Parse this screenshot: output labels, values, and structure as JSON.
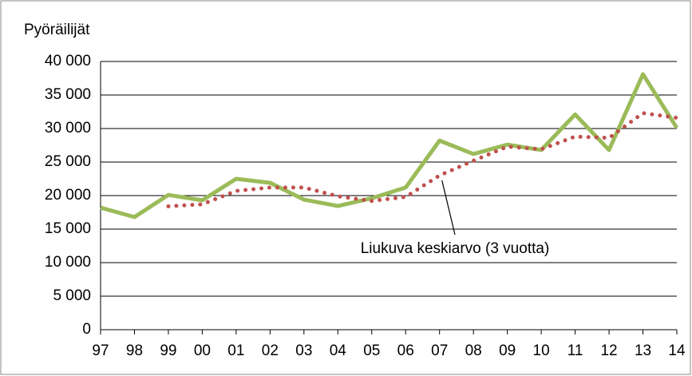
{
  "chart_data": {
    "type": "line",
    "ylabel": "Pyöräilijät",
    "categories": [
      "97",
      "98",
      "99",
      "00",
      "01",
      "02",
      "03",
      "04",
      "05",
      "06",
      "07",
      "08",
      "09",
      "10",
      "11",
      "12",
      "13",
      "14"
    ],
    "series": [
      {
        "color": "#9bbb59",
        "style": "solid",
        "values": [
          18200,
          16800,
          20100,
          19300,
          22500,
          21900,
          19400,
          18450,
          19600,
          21200,
          28200,
          26200,
          27600,
          26800,
          32100,
          26800,
          38100,
          30100
        ]
      },
      {
        "color": "#c0504d",
        "style": "dotted",
        "values": [
          null,
          null,
          18400,
          18700,
          20700,
          21200,
          21200,
          19900,
          19200,
          19800,
          23000,
          25200,
          27300,
          26900,
          28800,
          28600,
          32300,
          31600
        ]
      }
    ],
    "annotations": [
      {
        "text": "Liukuva keskiarvo (3 vuotta)",
        "series": 1,
        "index": 10
      }
    ],
    "ylim": [
      0,
      40000
    ],
    "yticks": [
      {
        "value": 0,
        "label": "0"
      },
      {
        "value": 5000,
        "label": "5 000"
      },
      {
        "value": 10000,
        "label": "10 000"
      },
      {
        "value": 15000,
        "label": "15 000"
      },
      {
        "value": 20000,
        "label": "20 000"
      },
      {
        "value": 25000,
        "label": "25 000"
      },
      {
        "value": 30000,
        "label": "30 000"
      },
      {
        "value": 35000,
        "label": "35 000"
      },
      {
        "value": 40000,
        "label": "40 000"
      }
    ],
    "grid": true
  }
}
